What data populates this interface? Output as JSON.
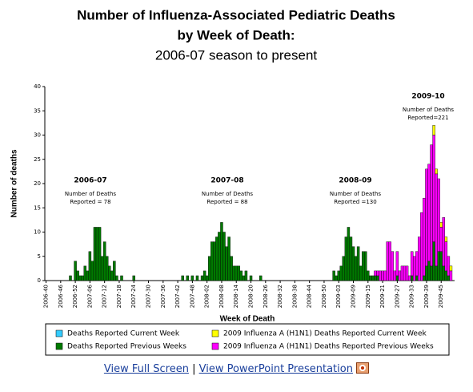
{
  "chart_data": {
    "type": "bar",
    "stacked": true,
    "title": [
      "Number of Influenza-Associated Pediatric Deaths",
      "by Week of Death:",
      "2006-07 season to present"
    ],
    "ylabel": "Number of deaths",
    "xlabel": "Week of Death",
    "ylim": [
      0,
      40
    ],
    "yticks": [
      0,
      5,
      10,
      15,
      20,
      25,
      30,
      35,
      40
    ],
    "categories": [
      "2006-40",
      null,
      null,
      null,
      null,
      null,
      "2006-46",
      null,
      null,
      null,
      null,
      null,
      "2006-52",
      null,
      null,
      null,
      null,
      null,
      "2007-06",
      null,
      null,
      null,
      null,
      null,
      "2007-12",
      null,
      null,
      null,
      null,
      null,
      "2007-18",
      null,
      null,
      null,
      null,
      null,
      "2007-24",
      null,
      null,
      null,
      null,
      null,
      "2007-30",
      null,
      null,
      null,
      null,
      null,
      "2007-36",
      null,
      null,
      null,
      null,
      null,
      "2007-42",
      null,
      null,
      null,
      null,
      null,
      "2007-48",
      null,
      null,
      null,
      null,
      null,
      "2008-02",
      null,
      null,
      null,
      null,
      null,
      "2008-08",
      null,
      null,
      null,
      null,
      null,
      "2008-14",
      null,
      null,
      null,
      null,
      null,
      "2008-20",
      null,
      null,
      null,
      null,
      null,
      "2008-26",
      null,
      null,
      null,
      null,
      null,
      "2008-32",
      null,
      null,
      null,
      null,
      null,
      "2008-38",
      null,
      null,
      null,
      null,
      null,
      "2008-44",
      null,
      null,
      null,
      null,
      null,
      "2008-50",
      null,
      null,
      null,
      null,
      null,
      "2009-03",
      null,
      null,
      null,
      null,
      null,
      "2009-09",
      null,
      null,
      null,
      null,
      null,
      "2009-15",
      null,
      null,
      null,
      null,
      null,
      "2009-21",
      null,
      null,
      null,
      null,
      null,
      "2009-27",
      null,
      null,
      null,
      null,
      null,
      "2009-33",
      null,
      null,
      null,
      null,
      null,
      "2009-39",
      null,
      null,
      null,
      null,
      null,
      "2009-45",
      null,
      null,
      null,
      null,
      null
    ],
    "series": [
      {
        "name": "Deaths Reported Current Week",
        "color": "#33ccff",
        "values": [
          0,
          0,
          0,
          0,
          0,
          0,
          0,
          0,
          0,
          0,
          0,
          0,
          0,
          0,
          0,
          0,
          0,
          0,
          0,
          0,
          0,
          0,
          0,
          0,
          0,
          0,
          0,
          0,
          0,
          0,
          0,
          0,
          0,
          0,
          0,
          0,
          0,
          0,
          0,
          0,
          0,
          0,
          0,
          0,
          0,
          0,
          0,
          0,
          0,
          0,
          0,
          0,
          0,
          0,
          0,
          0,
          0,
          0,
          0,
          0,
          0,
          0,
          0,
          0,
          0,
          0,
          0,
          0,
          0,
          0,
          0,
          0,
          0,
          0,
          0,
          0,
          0,
          0,
          0,
          0,
          0,
          0,
          0,
          0,
          0,
          0,
          0,
          0,
          0,
          0,
          0,
          0,
          0,
          0,
          0,
          0,
          0,
          0,
          0,
          0,
          0,
          0,
          0,
          0,
          0,
          0,
          0,
          0,
          0,
          0,
          0,
          0,
          0,
          0,
          0,
          0,
          0,
          0,
          0,
          0,
          0,
          0,
          0,
          0,
          0,
          0,
          0,
          0,
          0,
          0,
          0,
          0,
          0,
          0,
          0,
          0,
          0,
          0,
          0,
          0,
          0,
          0,
          0,
          0,
          0,
          0,
          0,
          0,
          0,
          0,
          0,
          0,
          0,
          0,
          0,
          0,
          0,
          0,
          0,
          0,
          0,
          0,
          0,
          0,
          0,
          0,
          0,
          0
        ]
      },
      {
        "name": "Deaths Reported Previous Weeks",
        "color": "#007a00",
        "values": [
          0,
          0,
          0,
          0,
          0,
          0,
          0,
          0,
          0,
          0,
          1,
          0,
          4,
          2,
          1,
          1,
          3,
          2,
          6,
          4,
          11,
          11,
          11,
          5,
          8,
          5,
          3,
          2,
          4,
          1,
          0,
          1,
          0,
          0,
          0,
          0,
          1,
          0,
          0,
          0,
          0,
          0,
          0,
          0,
          0,
          0,
          0,
          0,
          0,
          0,
          0,
          0,
          0,
          0,
          0,
          0,
          1,
          0,
          1,
          0,
          1,
          0,
          1,
          0,
          1,
          2,
          1,
          5,
          8,
          8,
          9,
          10,
          12,
          10,
          7,
          9,
          5,
          3,
          3,
          3,
          2,
          1,
          2,
          0,
          1,
          0,
          0,
          0,
          1,
          0,
          0,
          0,
          0,
          0,
          0,
          0,
          0,
          0,
          0,
          0,
          0,
          0,
          0,
          0,
          0,
          0,
          0,
          0,
          0,
          0,
          0,
          0,
          0,
          0,
          0,
          0,
          0,
          0,
          2,
          1,
          2,
          3,
          5,
          9,
          11,
          9,
          7,
          5,
          7,
          3,
          6,
          6,
          2,
          1,
          1,
          1,
          1,
          0,
          0,
          0,
          0,
          0,
          0,
          0,
          1,
          0,
          0,
          0,
          0,
          0,
          1,
          0,
          1,
          0,
          0,
          1,
          3,
          4,
          3,
          8,
          3,
          6,
          6,
          3,
          2,
          1,
          0,
          0
        ]
      },
      {
        "name": "2009 Influenza A (H1N1) Deaths Reported Current Week",
        "color": "#ffff00",
        "values": [
          0,
          0,
          0,
          0,
          0,
          0,
          0,
          0,
          0,
          0,
          0,
          0,
          0,
          0,
          0,
          0,
          0,
          0,
          0,
          0,
          0,
          0,
          0,
          0,
          0,
          0,
          0,
          0,
          0,
          0,
          0,
          0,
          0,
          0,
          0,
          0,
          0,
          0,
          0,
          0,
          0,
          0,
          0,
          0,
          0,
          0,
          0,
          0,
          0,
          0,
          0,
          0,
          0,
          0,
          0,
          0,
          0,
          0,
          0,
          0,
          0,
          0,
          0,
          0,
          0,
          0,
          0,
          0,
          0,
          0,
          0,
          0,
          0,
          0,
          0,
          0,
          0,
          0,
          0,
          0,
          0,
          0,
          0,
          0,
          0,
          0,
          0,
          0,
          0,
          0,
          0,
          0,
          0,
          0,
          0,
          0,
          0,
          0,
          0,
          0,
          0,
          0,
          0,
          0,
          0,
          0,
          0,
          0,
          0,
          0,
          0,
          0,
          0,
          0,
          0,
          0,
          0,
          0,
          0,
          0,
          0,
          0,
          0,
          0,
          0,
          0,
          0,
          0,
          0,
          0,
          0,
          0,
          0,
          0,
          0,
          0,
          0,
          0,
          0,
          0,
          0,
          0,
          0,
          0,
          0,
          0,
          0,
          0,
          0,
          0,
          0,
          0,
          0,
          0,
          0,
          0,
          0,
          0,
          0,
          2,
          1,
          0,
          1,
          0,
          1,
          0,
          1,
          0
        ]
      },
      {
        "name": "2009 Influenza A (H1N1) Deaths Reported Previous Weeks",
        "color": "#ff00ff",
        "values": [
          0,
          0,
          0,
          0,
          0,
          0,
          0,
          0,
          0,
          0,
          0,
          0,
          0,
          0,
          0,
          0,
          0,
          0,
          0,
          0,
          0,
          0,
          0,
          0,
          0,
          0,
          0,
          0,
          0,
          0,
          0,
          0,
          0,
          0,
          0,
          0,
          0,
          0,
          0,
          0,
          0,
          0,
          0,
          0,
          0,
          0,
          0,
          0,
          0,
          0,
          0,
          0,
          0,
          0,
          0,
          0,
          0,
          0,
          0,
          0,
          0,
          0,
          0,
          0,
          0,
          0,
          0,
          0,
          0,
          0,
          0,
          0,
          0,
          0,
          0,
          0,
          0,
          0,
          0,
          0,
          0,
          0,
          0,
          0,
          0,
          0,
          0,
          0,
          0,
          0,
          0,
          0,
          0,
          0,
          0,
          0,
          0,
          0,
          0,
          0,
          0,
          0,
          0,
          0,
          0,
          0,
          0,
          0,
          0,
          0,
          0,
          0,
          0,
          0,
          0,
          0,
          0,
          0,
          0,
          0,
          0,
          0,
          0,
          0,
          0,
          0,
          0,
          0,
          0,
          0,
          0,
          0,
          0,
          0,
          0,
          1,
          1,
          2,
          2,
          2,
          8,
          8,
          6,
          2,
          5,
          2,
          3,
          3,
          3,
          1,
          5,
          5,
          5,
          9,
          14,
          16,
          20,
          20,
          25,
          22,
          19,
          15,
          5,
          10,
          6,
          4,
          2,
          0
        ]
      }
    ],
    "annotations": [
      {
        "label": "2006-07",
        "lines": [
          "Number of Deaths",
          "Reported = 78"
        ]
      },
      {
        "label": "2007-08",
        "lines": [
          "Number of Deaths",
          "Reported = 88"
        ]
      },
      {
        "label": "2008-09",
        "lines": [
          "Number of Deaths",
          "Reported =130"
        ]
      },
      {
        "label": "2009-10",
        "lines": [
          "Number of Deaths",
          "Reported=221"
        ]
      }
    ]
  },
  "links": {
    "full_screen": "View Full Screen",
    "separator": "|",
    "powerpoint": "View PowerPoint Presentation"
  }
}
